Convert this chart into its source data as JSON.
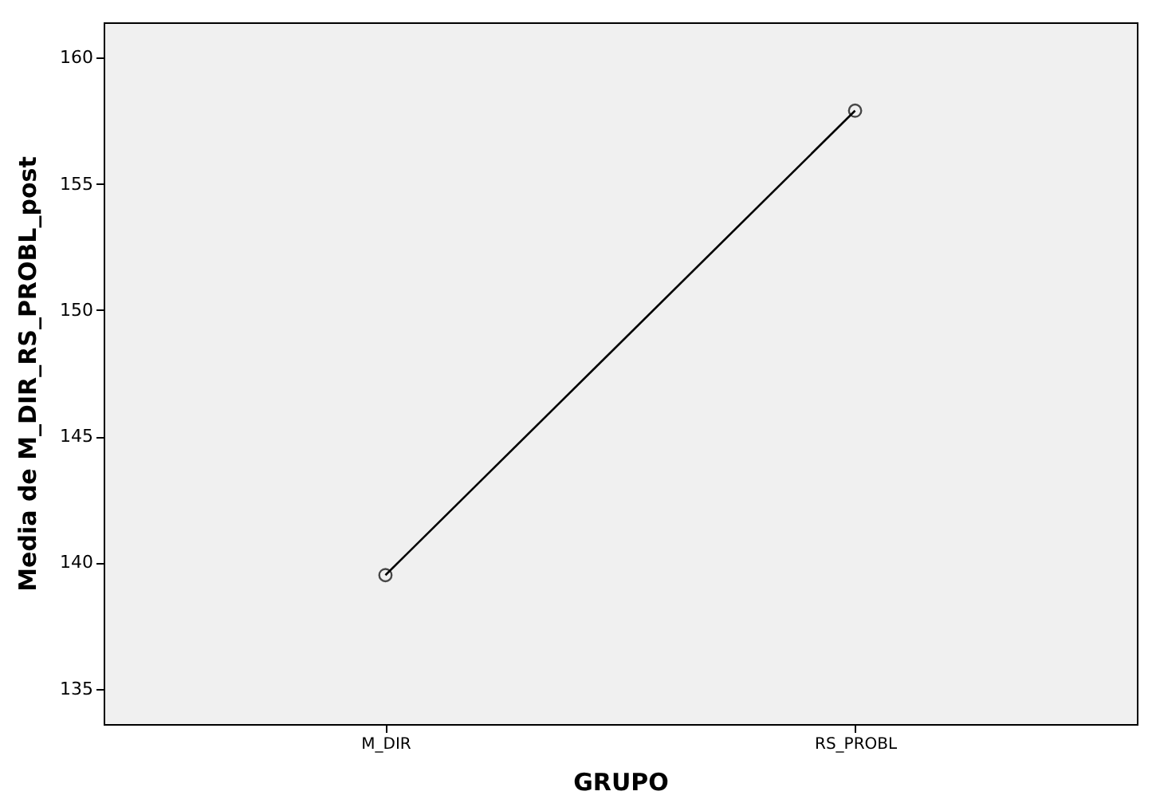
{
  "chart_data": {
    "type": "line",
    "xlabel": "GRUPO",
    "ylabel": "Media de M_DIR_RS_PROBL_post",
    "categories": [
      "M_DIR",
      "RS_PROBL"
    ],
    "series": [
      {
        "color": "#000000",
        "values": [
          139.5,
          157.9
        ]
      }
    ],
    "ylim": [
      133.6,
      161.4
    ],
    "yticks": [
      135,
      140,
      145,
      150,
      155,
      160
    ],
    "marker": "circle",
    "grid": false,
    "legend": false
  }
}
